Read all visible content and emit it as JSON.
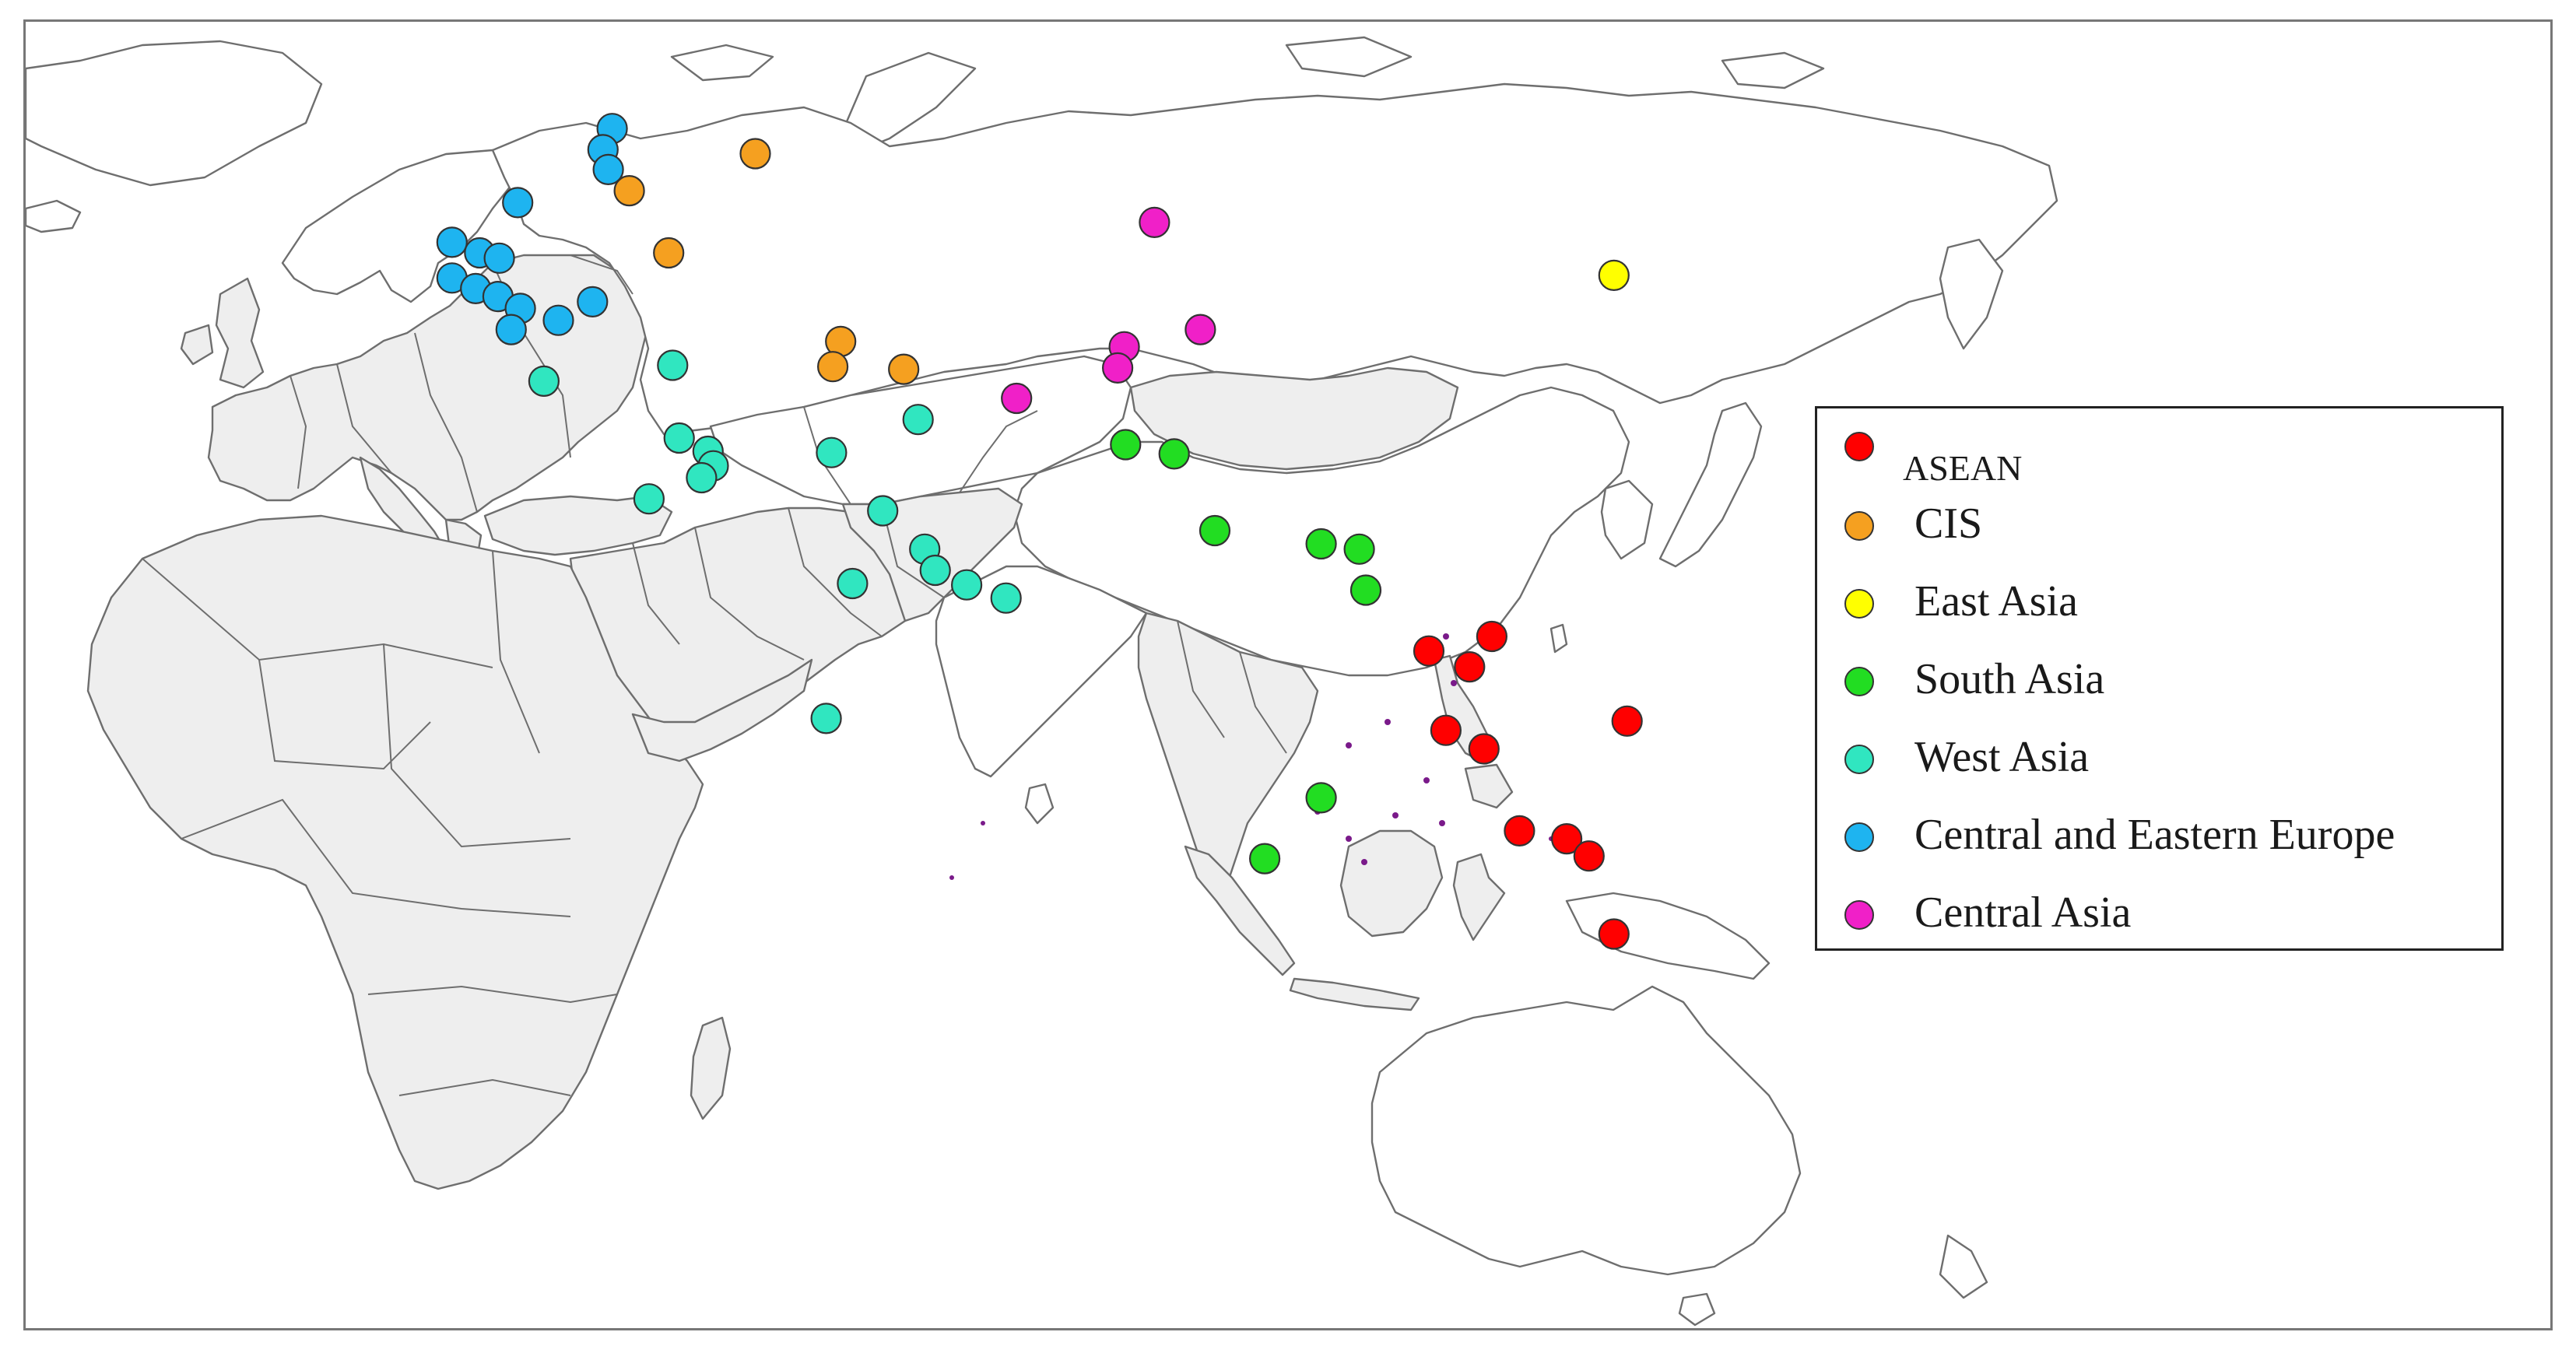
{
  "legend": {
    "items": [
      {
        "key": "asean",
        "label": "ASEAN",
        "color": "#ff0000"
      },
      {
        "key": "cis",
        "label": "CIS",
        "color": "#f5a020"
      },
      {
        "key": "east_asia",
        "label": "East Asia",
        "color": "#ffff00"
      },
      {
        "key": "south_asia",
        "label": "South Asia",
        "color": "#22dd22"
      },
      {
        "key": "west_asia",
        "label": "West Asia",
        "color": "#30e6c0"
      },
      {
        "key": "ceeu",
        "label": "Central and Eastern Europe",
        "color": "#1eb4f0"
      },
      {
        "key": "central_asia",
        "label": "Central Asia",
        "color": "#f020c8"
      }
    ]
  },
  "markers": [
    {
      "region": "ceeu",
      "lon": 26.7,
      "lat": 58.4
    },
    {
      "region": "ceeu",
      "lon": 26.0,
      "lat": 56.8
    },
    {
      "region": "ceeu",
      "lon": 26.4,
      "lat": 55.3
    },
    {
      "region": "ceeu",
      "lon": 19.5,
      "lat": 52.8
    },
    {
      "region": "ceeu",
      "lon": 14.5,
      "lat": 49.8
    },
    {
      "region": "ceeu",
      "lon": 16.6,
      "lat": 49.0
    },
    {
      "region": "ceeu",
      "lon": 18.1,
      "lat": 48.6
    },
    {
      "region": "ceeu",
      "lon": 14.5,
      "lat": 47.1
    },
    {
      "region": "ceeu",
      "lon": 16.3,
      "lat": 46.3
    },
    {
      "region": "ceeu",
      "lon": 18.0,
      "lat": 45.7
    },
    {
      "region": "ceeu",
      "lon": 19.7,
      "lat": 44.8
    },
    {
      "region": "ceeu",
      "lon": 22.6,
      "lat": 43.9
    },
    {
      "region": "ceeu",
      "lon": 19.0,
      "lat": 43.2
    },
    {
      "region": "ceeu",
      "lon": 25.2,
      "lat": 45.3
    },
    {
      "region": "cis",
      "lon": 37.6,
      "lat": 56.5
    },
    {
      "region": "cis",
      "lon": 28.0,
      "lat": 53.7
    },
    {
      "region": "cis",
      "lon": 31.0,
      "lat": 49.0
    },
    {
      "region": "cis",
      "lon": 44.1,
      "lat": 42.3
    },
    {
      "region": "cis",
      "lon": 43.5,
      "lat": 40.4
    },
    {
      "region": "cis",
      "lon": 48.9,
      "lat": 40.2
    },
    {
      "region": "east_asia",
      "lon": 103.0,
      "lat": 47.3
    },
    {
      "region": "central_asia",
      "lon": 68.0,
      "lat": 51.3
    },
    {
      "region": "central_asia",
      "lon": 71.5,
      "lat": 43.2
    },
    {
      "region": "central_asia",
      "lon": 65.7,
      "lat": 41.9
    },
    {
      "region": "central_asia",
      "lon": 65.2,
      "lat": 40.3
    },
    {
      "region": "central_asia",
      "lon": 57.5,
      "lat": 38.0
    },
    {
      "region": "west_asia",
      "lon": 21.5,
      "lat": 39.3
    },
    {
      "region": "west_asia",
      "lon": 31.3,
      "lat": 40.5
    },
    {
      "region": "west_asia",
      "lon": 31.8,
      "lat": 35.0
    },
    {
      "region": "west_asia",
      "lon": 34.0,
      "lat": 34.0
    },
    {
      "region": "west_asia",
      "lon": 34.4,
      "lat": 32.9
    },
    {
      "region": "west_asia",
      "lon": 33.5,
      "lat": 32.0
    },
    {
      "region": "west_asia",
      "lon": 29.5,
      "lat": 30.4
    },
    {
      "region": "west_asia",
      "lon": 43.4,
      "lat": 33.9
    },
    {
      "region": "west_asia",
      "lon": 50.0,
      "lat": 36.4
    },
    {
      "region": "west_asia",
      "lon": 47.3,
      "lat": 29.5
    },
    {
      "region": "west_asia",
      "lon": 50.5,
      "lat": 26.6
    },
    {
      "region": "west_asia",
      "lon": 51.3,
      "lat": 25.0
    },
    {
      "region": "west_asia",
      "lon": 53.7,
      "lat": 23.9
    },
    {
      "region": "west_asia",
      "lon": 56.7,
      "lat": 22.9
    },
    {
      "region": "west_asia",
      "lon": 45.0,
      "lat": 24.0
    },
    {
      "region": "west_asia",
      "lon": 43.0,
      "lat": 13.8
    },
    {
      "region": "south_asia",
      "lon": 65.8,
      "lat": 34.5
    },
    {
      "region": "south_asia",
      "lon": 69.5,
      "lat": 33.8
    },
    {
      "region": "south_asia",
      "lon": 72.6,
      "lat": 28.0
    },
    {
      "region": "south_asia",
      "lon": 80.7,
      "lat": 27.0
    },
    {
      "region": "south_asia",
      "lon": 83.6,
      "lat": 26.6
    },
    {
      "region": "south_asia",
      "lon": 84.1,
      "lat": 23.5
    },
    {
      "region": "south_asia",
      "lon": 76.4,
      "lat": 3.2
    },
    {
      "region": "south_asia",
      "lon": 80.7,
      "lat": 7.8
    },
    {
      "region": "asean",
      "lon": 88.9,
      "lat": 18.9
    },
    {
      "region": "asean",
      "lon": 93.7,
      "lat": 20.0
    },
    {
      "region": "asean",
      "lon": 92.0,
      "lat": 17.7
    },
    {
      "region": "asean",
      "lon": 90.2,
      "lat": 12.9
    },
    {
      "region": "asean",
      "lon": 93.1,
      "lat": 11.5
    },
    {
      "region": "asean",
      "lon": 104.0,
      "lat": 13.6
    },
    {
      "region": "asean",
      "lon": 99.4,
      "lat": 4.7
    },
    {
      "region": "asean",
      "lon": 101.1,
      "lat": 3.4
    },
    {
      "region": "asean",
      "lon": 95.8,
      "lat": 5.3
    },
    {
      "region": "asean",
      "lon": 103.0,
      "lat": -2.5
    }
  ]
}
